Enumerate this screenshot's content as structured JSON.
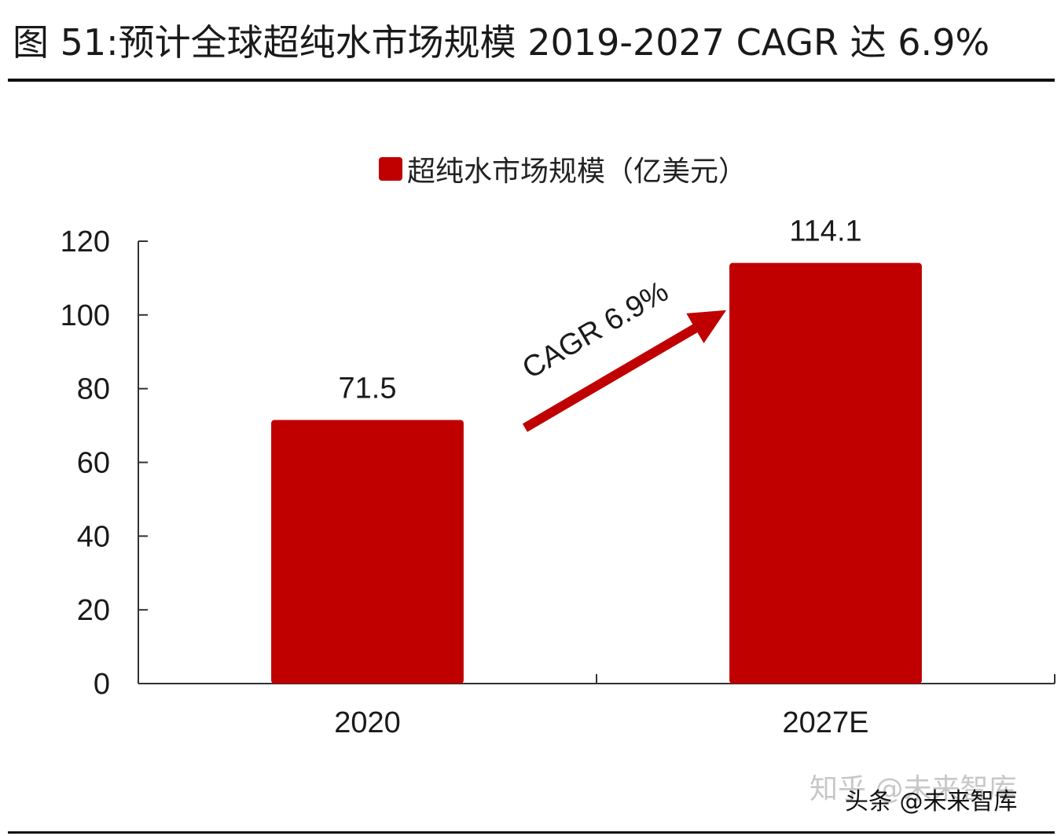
{
  "figure_title": "图 51:预计全球超纯水市场规模 2019-2027 CAGR 达 6.9%",
  "watermark": {
    "faint_text": "知乎 @未来智库",
    "text": "头条 @未来智库"
  },
  "colors": {
    "bar": "#C00000",
    "axis": "#333333",
    "text": "#1a1a1a"
  },
  "chart_data": {
    "type": "bar",
    "categories": [
      "2020",
      "2027E"
    ],
    "series": [
      {
        "name": "超纯水市场规模（亿美元）",
        "values": [
          71.5,
          114.1
        ]
      }
    ],
    "data_labels": [
      "71.5",
      "114.1"
    ],
    "y_ticks": [
      0,
      20,
      40,
      60,
      80,
      100,
      120
    ],
    "ylim": [
      0,
      120
    ],
    "title": "",
    "xlabel": "",
    "ylabel": "",
    "legend_position": "top-center",
    "grid": false,
    "annotation": {
      "text": "CAGR 6.9%",
      "style": "arrow from first bar to second bar"
    }
  }
}
